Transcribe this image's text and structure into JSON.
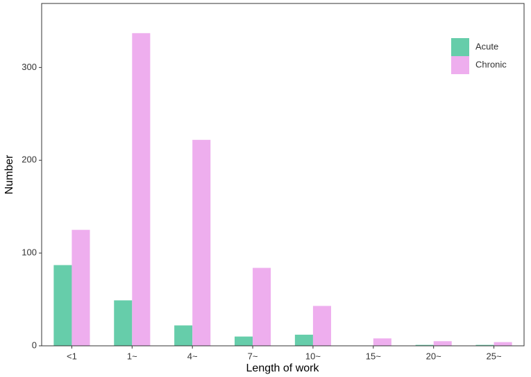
{
  "chart_data": {
    "type": "bar",
    "x_label": "Length of work",
    "y_label": "Number",
    "categories": [
      "<1",
      "1~",
      "4~",
      "7~",
      "10~",
      "15~",
      "20~",
      "25~"
    ],
    "series": [
      {
        "name": "Acute",
        "color": "#66cdaa",
        "values": [
          87,
          49,
          22,
          10,
          12,
          0,
          1,
          1
        ]
      },
      {
        "name": "Chronic",
        "color": "#eeaeee",
        "values": [
          125,
          337,
          222,
          84,
          43,
          8,
          5,
          4
        ]
      }
    ],
    "ylim": [
      0,
      369
    ],
    "yticks": [
      0,
      100,
      200,
      300
    ],
    "grid": false,
    "legend": "top-right"
  }
}
